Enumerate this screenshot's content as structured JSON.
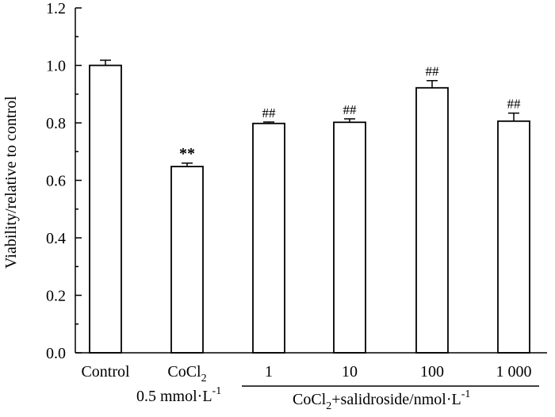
{
  "chart_data": {
    "type": "bar",
    "title": "",
    "xlabel": "",
    "ylabel": "Viability/relative to control",
    "ylim": [
      0,
      1.2
    ],
    "yticks": [
      "0.0",
      "0.2",
      "0.4",
      "0.6",
      "0.8",
      "1.0",
      "1.2"
    ],
    "categories": [
      "Control",
      "CoCl2",
      "1",
      "10",
      "100",
      "1 000"
    ],
    "values": [
      1.0,
      0.648,
      0.798,
      0.802,
      0.922,
      0.806
    ],
    "errors": [
      0.018,
      0.012,
      0.005,
      0.012,
      0.025,
      0.028
    ],
    "significance": [
      "",
      "**",
      "##",
      "##",
      "##",
      "##"
    ],
    "group_labels": {
      "cocl2_dose": "0.5 mmol·L",
      "cocl2_dose_exp": "-1",
      "treatment": "CoCl",
      "treatment_sub": "2",
      "treatment_rest": "+salidroside/nmol·L",
      "treatment_exp": "-1"
    },
    "cocl2_label": {
      "main": "CoCl",
      "sub": "2"
    }
  }
}
